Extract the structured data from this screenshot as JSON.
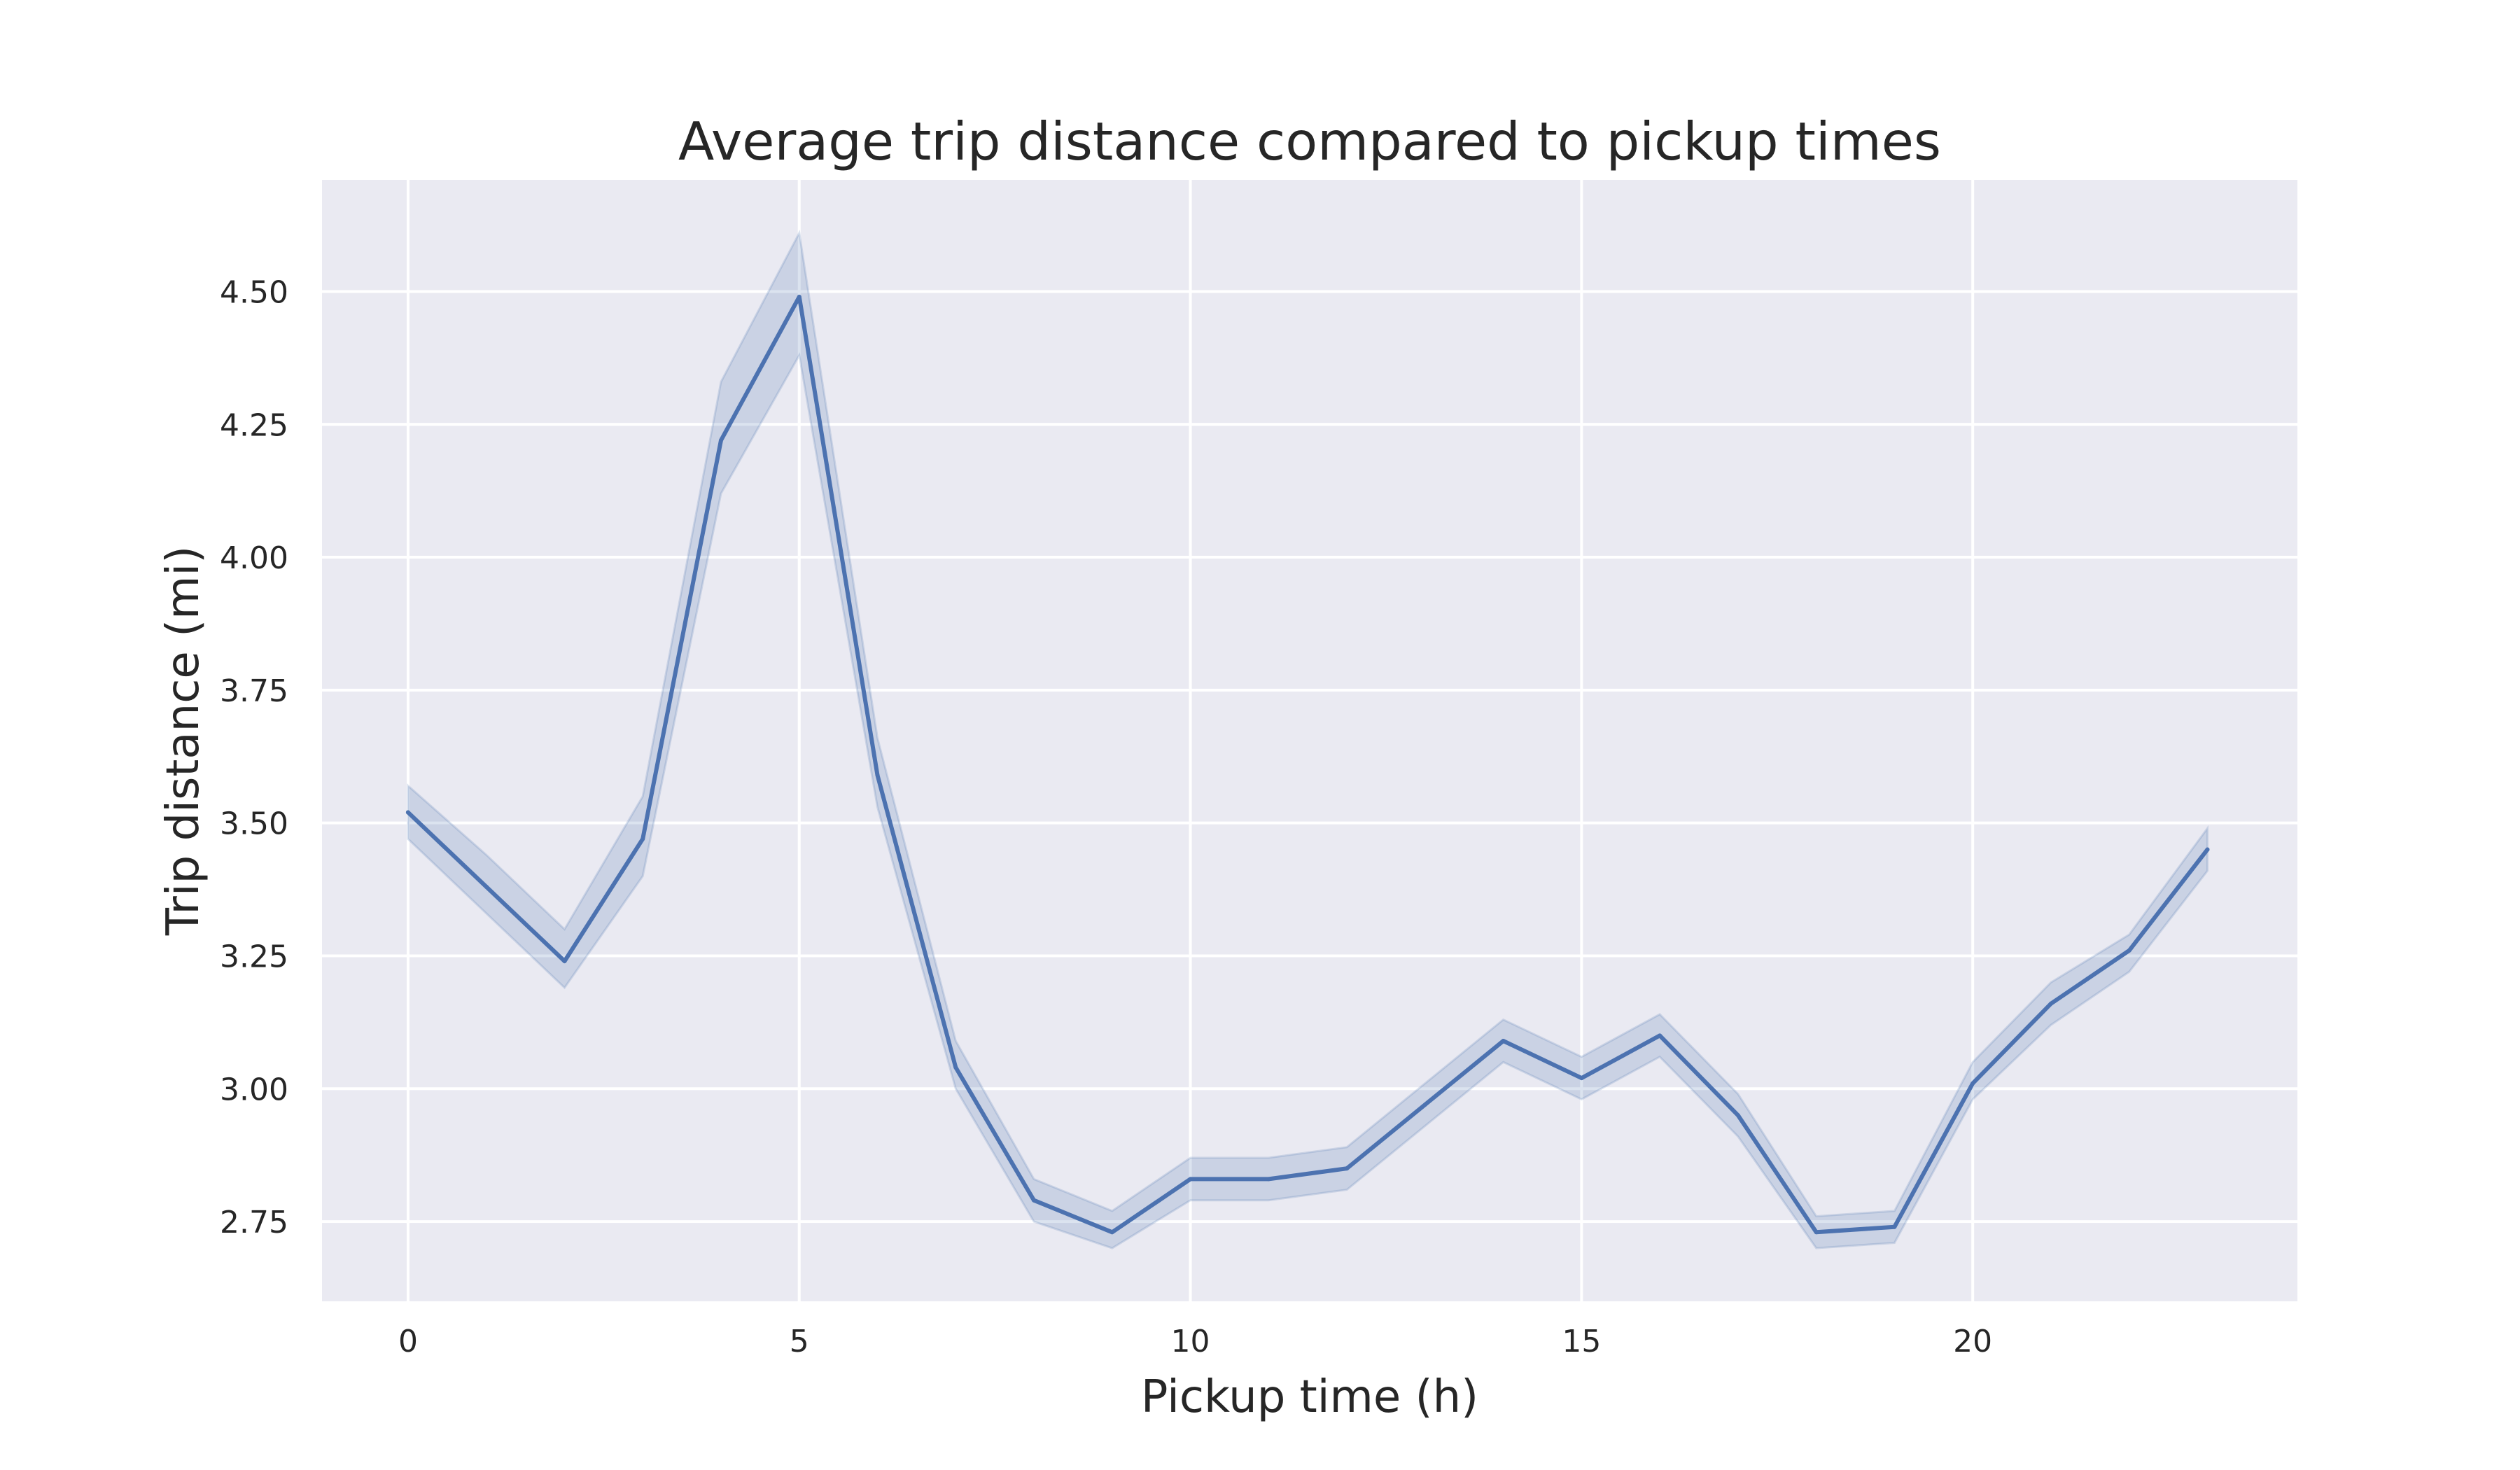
{
  "chart_data": {
    "type": "line",
    "title": "Average trip distance compared to pickup times",
    "xlabel": "Pickup time (h)",
    "ylabel": "Trip distance (mi)",
    "xlim": [
      -1.1,
      24.15
    ],
    "ylim": [
      2.6,
      4.71
    ],
    "xticks": [
      0,
      5,
      10,
      15,
      20
    ],
    "xtick_labels": [
      "0",
      "5",
      "10",
      "15",
      "20"
    ],
    "yticks": [
      2.75,
      3.0,
      3.25,
      3.5,
      3.75,
      4.0,
      4.25,
      4.5
    ],
    "ytick_labels": [
      "2.75",
      "3.00",
      "3.25",
      "3.50",
      "3.75",
      "4.00",
      "4.25",
      "4.50"
    ],
    "grid": true,
    "legend": "none",
    "colors": {
      "background": "#eaeaf2",
      "grid": "#ffffff",
      "line": "#4c72b0",
      "band": "#4c72b0"
    },
    "series": [
      {
        "x": [
          0,
          1,
          2,
          3,
          4,
          5,
          6,
          7,
          8,
          9,
          10,
          11,
          12,
          13,
          14,
          15,
          16,
          17,
          18,
          19,
          20,
          21,
          22,
          23
        ],
        "values": [
          3.52,
          3.38,
          3.24,
          3.47,
          4.22,
          4.49,
          3.59,
          3.04,
          2.79,
          2.73,
          2.83,
          2.83,
          2.85,
          2.97,
          3.09,
          3.02,
          3.1,
          2.95,
          2.73,
          2.74,
          3.01,
          3.16,
          3.26,
          3.45
        ],
        "ci_low": [
          3.47,
          3.33,
          3.19,
          3.4,
          4.12,
          4.38,
          3.53,
          3.0,
          2.75,
          2.7,
          2.79,
          2.79,
          2.81,
          2.93,
          3.05,
          2.98,
          3.06,
          2.91,
          2.7,
          2.71,
          2.98,
          3.12,
          3.22,
          3.41
        ],
        "ci_high": [
          3.57,
          3.44,
          3.3,
          3.55,
          4.33,
          4.61,
          3.66,
          3.09,
          2.83,
          2.77,
          2.87,
          2.87,
          2.89,
          3.01,
          3.13,
          3.06,
          3.14,
          2.99,
          2.76,
          2.77,
          3.05,
          3.2,
          3.29,
          3.49
        ]
      }
    ]
  }
}
